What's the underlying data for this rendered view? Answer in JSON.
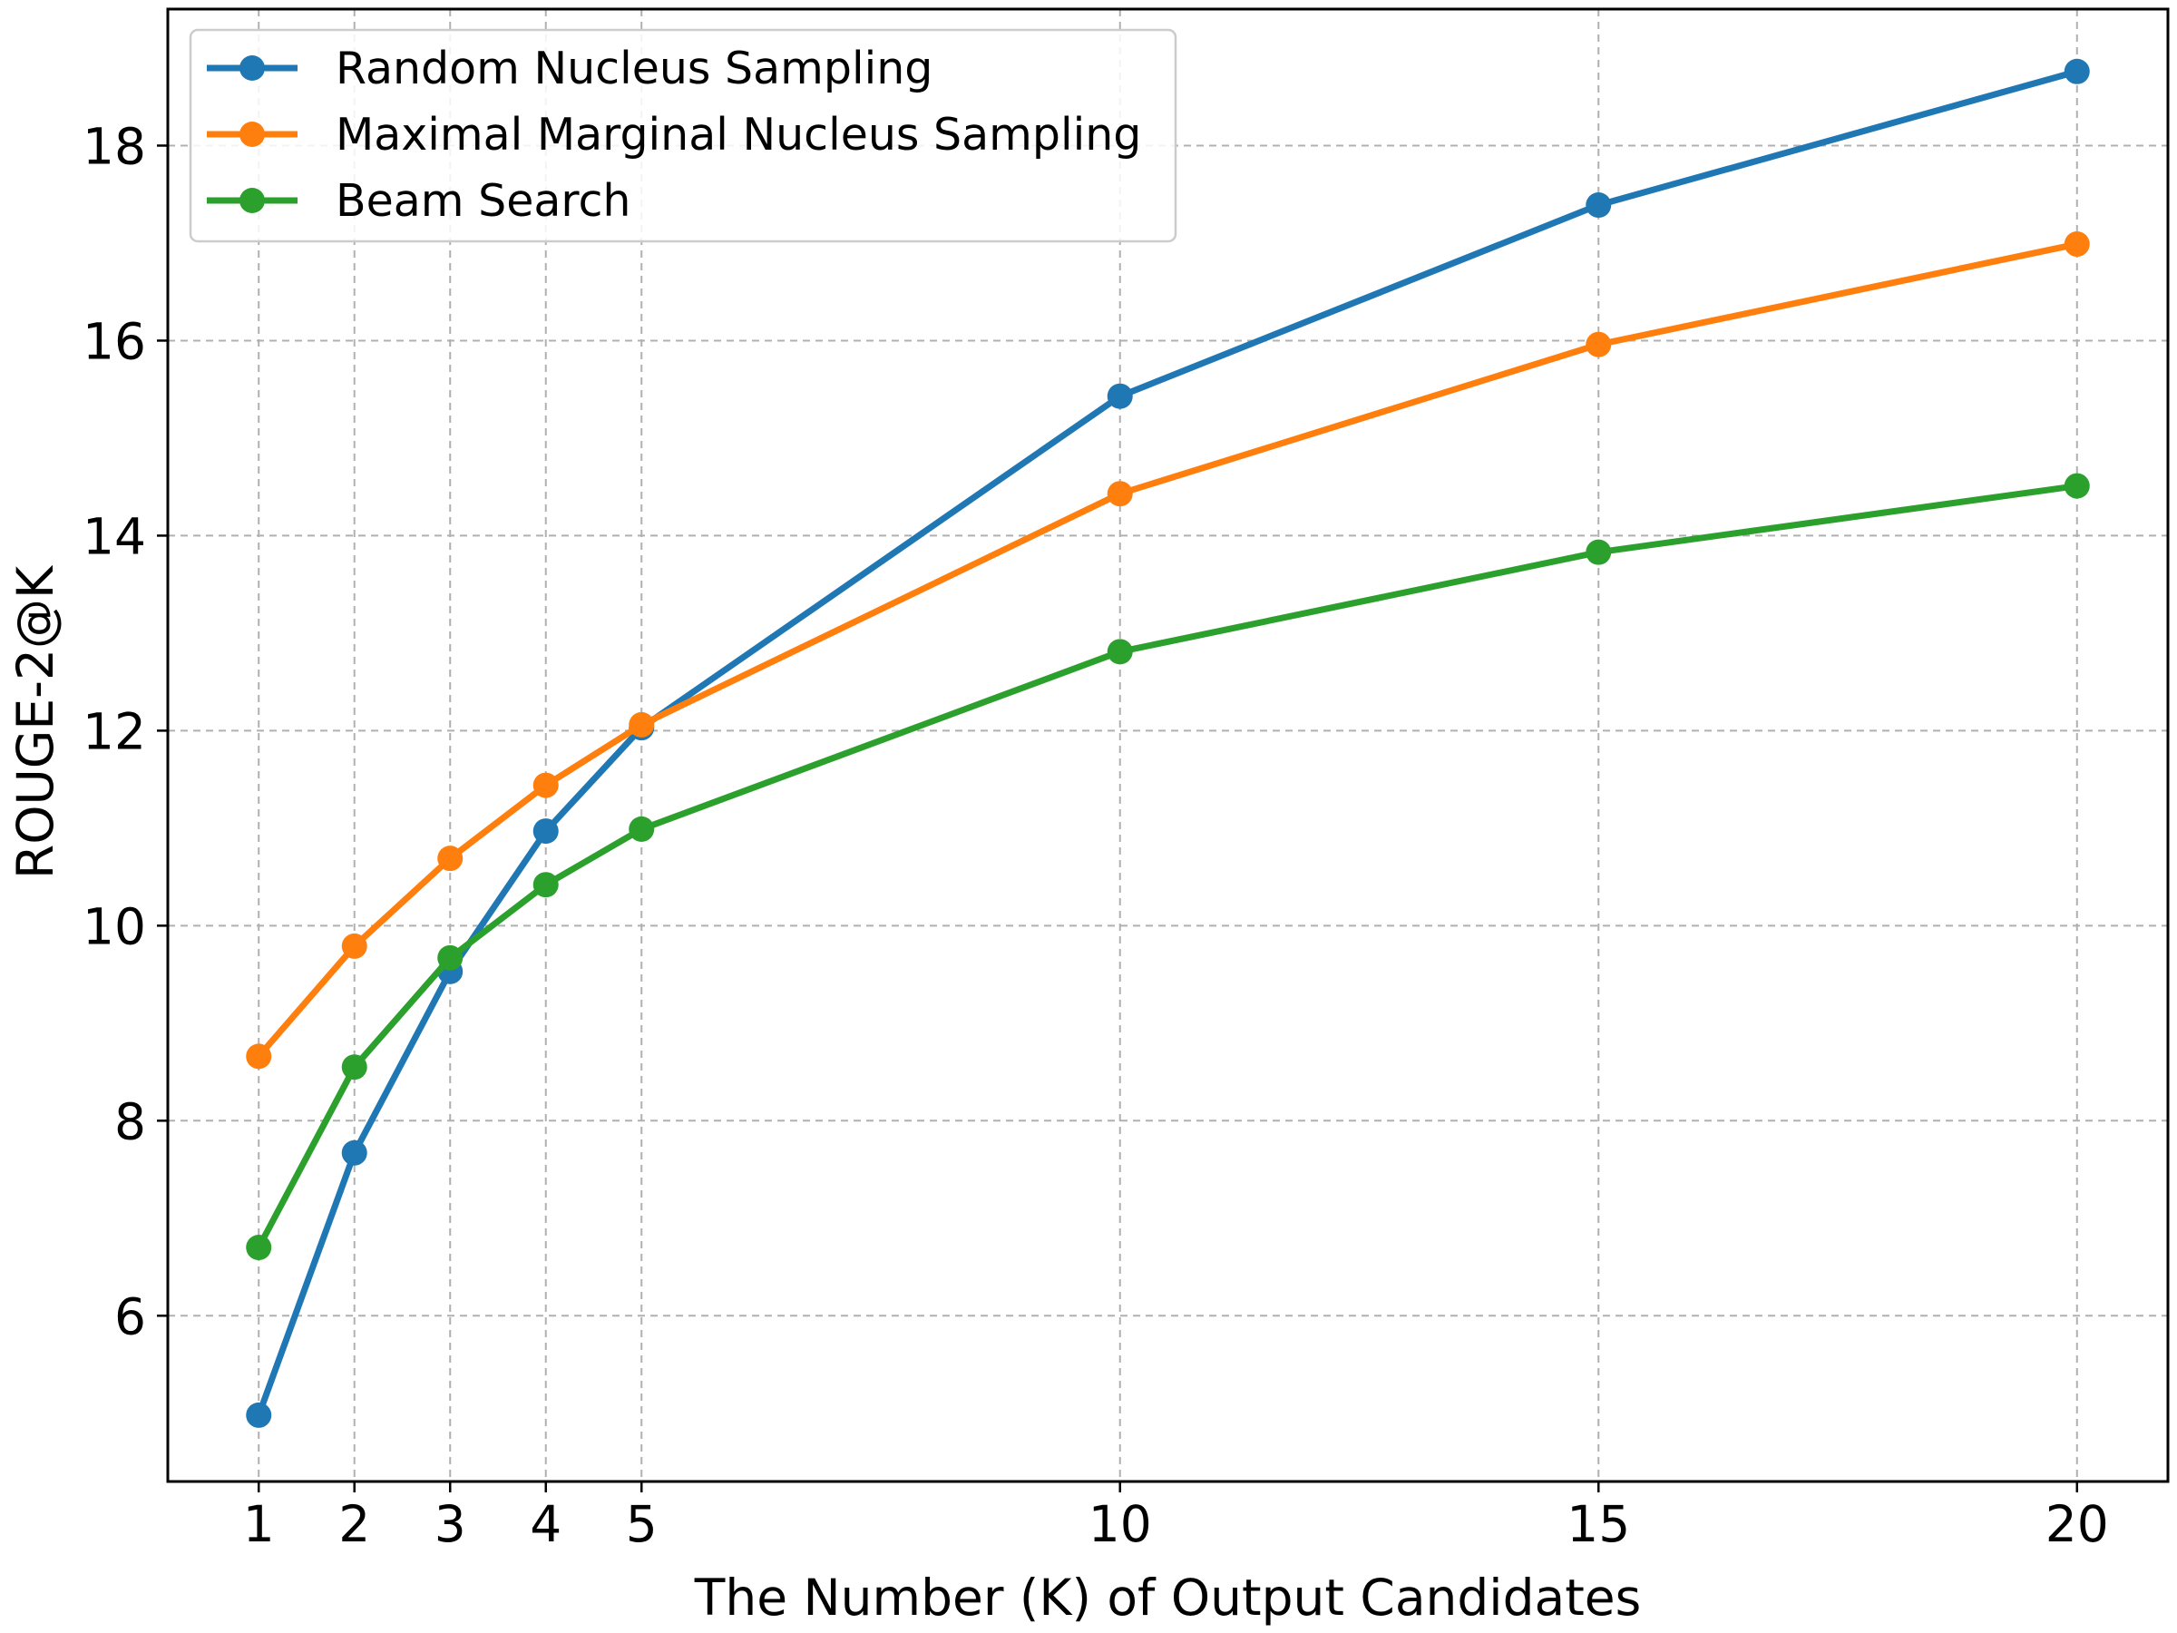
{
  "chart_data": {
    "type": "line",
    "title": "",
    "xlabel": "The Number (K) of Output Candidates",
    "ylabel": "ROUGE-2@K",
    "x": [
      1,
      2,
      3,
      4,
      5,
      10,
      15,
      20
    ],
    "x_ticks": [
      1,
      2,
      3,
      4,
      5,
      10,
      15,
      20
    ],
    "y_ticks": [
      6,
      8,
      10,
      12,
      14,
      16,
      18
    ],
    "xlim": [
      0.05,
      20.95
    ],
    "ylim": [
      4.3,
      19.4
    ],
    "grid": true,
    "legend_position": "top-left",
    "series": [
      {
        "name": "Random Nucleus Sampling",
        "color": "#1f77b4",
        "values": [
          4.98,
          7.67,
          9.53,
          10.97,
          12.03,
          15.43,
          17.39,
          18.76
        ]
      },
      {
        "name": "Maximal Marginal Nucleus Sampling",
        "color": "#ff7f0e",
        "values": [
          8.66,
          9.79,
          10.69,
          11.44,
          12.06,
          14.43,
          15.96,
          16.99
        ]
      },
      {
        "name": "Beam Search",
        "color": "#2ca02c",
        "values": [
          6.7,
          8.55,
          9.67,
          10.42,
          10.99,
          12.81,
          13.83,
          14.51
        ]
      }
    ]
  }
}
